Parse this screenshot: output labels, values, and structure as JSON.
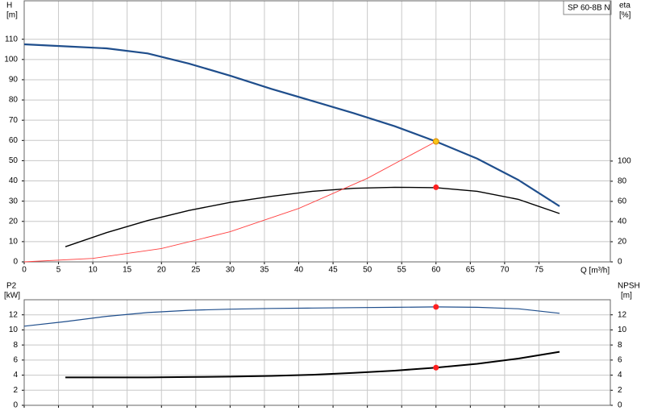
{
  "chart_data": [
    {
      "type": "line",
      "legend": "SP 60-8B N",
      "ylabel": "H",
      "yunit": "[m]",
      "y2label": "eta",
      "y2unit": "[%]",
      "xlabel": "Q [m³/h]",
      "xlim": [
        0,
        85.4
      ],
      "xticks": [
        0,
        5,
        10,
        15,
        20,
        25,
        30,
        35,
        40,
        45,
        50,
        55,
        60,
        65,
        70,
        75
      ],
      "show_xtick_labels": true,
      "ylim": [
        0,
        129
      ],
      "yticks": [
        0,
        10,
        20,
        30,
        40,
        50,
        60,
        70,
        80,
        90,
        100,
        110
      ],
      "y2lim": [
        0,
        259
      ],
      "y2ticks": [
        0,
        20,
        40,
        60,
        80,
        100
      ],
      "grid": true,
      "series": [
        {
          "name": "H",
          "color": "#1f4e8c",
          "width": 2.2,
          "x": [
            0,
            6,
            12,
            18,
            24,
            30,
            36,
            42,
            48,
            54,
            60,
            66,
            72,
            78
          ],
          "values": [
            107.5,
            106.5,
            105.5,
            103,
            98,
            92,
            85.5,
            79.5,
            73.5,
            67,
            59.5,
            51,
            40.5,
            27.5
          ]
        },
        {
          "name": "eta",
          "color": "#000000",
          "width": 1.4,
          "axis": "y2",
          "x": [
            6,
            12,
            18,
            24,
            30,
            36,
            42,
            48,
            54,
            60,
            66,
            72,
            78
          ],
          "values": [
            15,
            29,
            41,
            51,
            59,
            65,
            70,
            73,
            74,
            73.6,
            70,
            62,
            48
          ]
        },
        {
          "name": "system",
          "color": "#ff4040",
          "width": 0.9,
          "x": [
            0,
            10,
            20,
            30,
            40,
            50,
            60
          ],
          "values": [
            0,
            1.7,
            6.6,
            14.9,
            26.4,
            41.3,
            59.5
          ]
        }
      ],
      "markers": [
        {
          "x": 60,
          "y": 59.5,
          "color": "#f5c518"
        },
        {
          "x": 60,
          "y": 74,
          "axis": "y2",
          "color": "#ff2020"
        }
      ]
    },
    {
      "type": "line",
      "ylabel": "P2",
      "yunit": "[kW]",
      "y2label": "NPSH",
      "y2unit": "[m]",
      "xlim": [
        0,
        85.4
      ],
      "xticks": [
        0,
        5,
        10,
        15,
        20,
        25,
        30,
        35,
        40,
        45,
        50,
        55,
        60,
        65,
        70,
        75
      ],
      "show_xtick_labels": false,
      "ylim": [
        0,
        14
      ],
      "yticks": [
        0,
        2,
        4,
        6,
        8,
        10,
        12
      ],
      "y2lim": [
        0,
        14
      ],
      "y2ticks": [
        0,
        2,
        4,
        6,
        8,
        10,
        12
      ],
      "grid": true,
      "series": [
        {
          "name": "P2",
          "color": "#1f4e8c",
          "width": 1.2,
          "x": [
            0,
            6,
            12,
            18,
            24,
            30,
            36,
            42,
            48,
            54,
            60,
            66,
            72,
            78
          ],
          "values": [
            10.5,
            11.1,
            11.8,
            12.3,
            12.6,
            12.75,
            12.85,
            12.9,
            12.95,
            13,
            13.05,
            13,
            12.8,
            12.2
          ]
        },
        {
          "name": "NPSH",
          "color": "#000000",
          "width": 2,
          "axis": "y2",
          "x": [
            6,
            12,
            18,
            24,
            30,
            36,
            42,
            48,
            54,
            60,
            66,
            72,
            78
          ],
          "values": [
            3.7,
            3.7,
            3.7,
            3.75,
            3.8,
            3.9,
            4.05,
            4.3,
            4.6,
            5,
            5.5,
            6.2,
            7.1
          ]
        }
      ],
      "markers": [
        {
          "x": 60,
          "y": 13.05,
          "color": "#ff2020"
        },
        {
          "x": 60,
          "y": 5,
          "axis": "y2",
          "color": "#ff2020"
        }
      ]
    }
  ]
}
